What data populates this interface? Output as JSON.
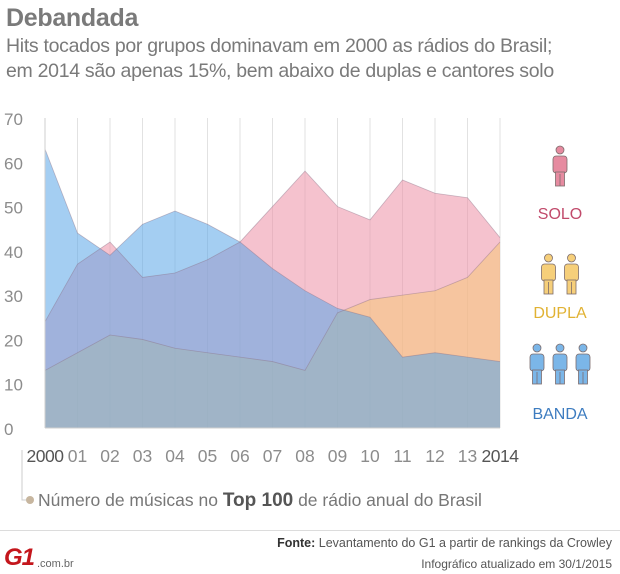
{
  "header": {
    "title": "Debandada",
    "subtitle_line1": "Hits tocados por grupos dominavam em 2000 as rádios do Brasil;",
    "subtitle_line2": "em 2014 são apenas 15%, bem abaixo de duplas e cantores solo"
  },
  "chart_data": {
    "type": "area",
    "x": [
      "2000",
      "01",
      "02",
      "03",
      "04",
      "05",
      "06",
      "07",
      "08",
      "09",
      "10",
      "11",
      "12",
      "13",
      "2014"
    ],
    "y_ticks": [
      0,
      10,
      20,
      30,
      40,
      50,
      60,
      70
    ],
    "ylim": [
      0,
      70
    ],
    "grid": "vertical",
    "legend_placement": "right",
    "series": [
      {
        "name": "SOLO",
        "color": "#ed8fa6",
        "icon": "person-icon",
        "icon_count": 1,
        "values": [
          24,
          37,
          42,
          34,
          35,
          38,
          42,
          50,
          58,
          50,
          47,
          56,
          53,
          52,
          43
        ]
      },
      {
        "name": "DUPLA",
        "color": "#f5c878",
        "icon": "person-icon",
        "icon_count": 2,
        "values": [
          13,
          17,
          21,
          20,
          18,
          17,
          16,
          15,
          13,
          26,
          29,
          30,
          31,
          34,
          42
        ]
      },
      {
        "name": "BANDA",
        "color": "#5aa6e8",
        "icon": "person-icon",
        "icon_count": 3,
        "values": [
          63,
          44,
          39,
          46,
          49,
          46,
          42,
          36,
          31,
          27,
          25,
          16,
          17,
          16,
          15
        ]
      }
    ]
  },
  "note": {
    "before": "Número de músicas no ",
    "bold": "Top 100",
    "after": " de rádio anual do Brasil"
  },
  "footer": {
    "source_label": "Fonte:",
    "source_text": " Levantamento do G1 a partir de rankings da Crowley",
    "updated": "Infográfico atualizado em 30/1/2015",
    "logo_text": "G1",
    "logo_domain": ".com.br"
  }
}
